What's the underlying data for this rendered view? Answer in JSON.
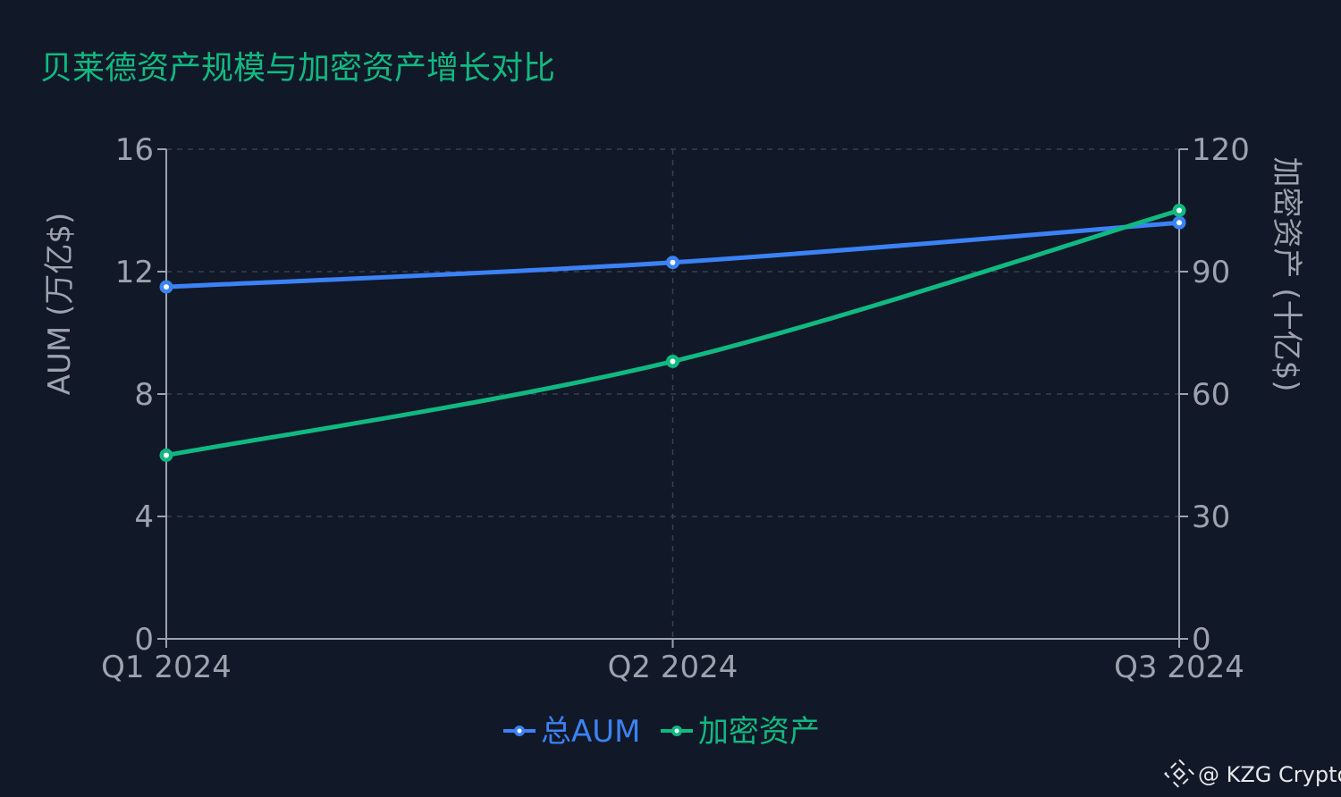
{
  "chart_data": {
    "type": "line",
    "title": "贝莱德资产规模与加密资产增长对比",
    "categories": [
      "Q1 2024",
      "Q2 2024",
      "Q3 2024"
    ],
    "series": [
      {
        "name": "总AUM",
        "axis": "left",
        "values": [
          11.5,
          12.3,
          13.6
        ],
        "color": "#3b82f6"
      },
      {
        "name": "加密资产",
        "axis": "right",
        "values": [
          45,
          68,
          105
        ],
        "color": "#10b981"
      }
    ],
    "y_left": {
      "label": "AUM (万亿$)",
      "ticks": [
        0,
        4,
        8,
        12,
        16
      ],
      "ylim": [
        0,
        16
      ]
    },
    "y_right": {
      "label": "加密资产 (十亿$)",
      "ticks": [
        0,
        30,
        60,
        90,
        120
      ],
      "ylim": [
        0,
        120
      ]
    },
    "grid": true,
    "legend_position": "bottom-center"
  },
  "colors": {
    "background": "#111827",
    "title": "#10b981",
    "axis_text": "#9ca3af",
    "axis_line": "#9ca3af",
    "grid": "#374151",
    "watermark": "#e5e7eb"
  },
  "watermark": {
    "text": "@ KZG Crypto",
    "icon": "binance-logo-icon"
  }
}
